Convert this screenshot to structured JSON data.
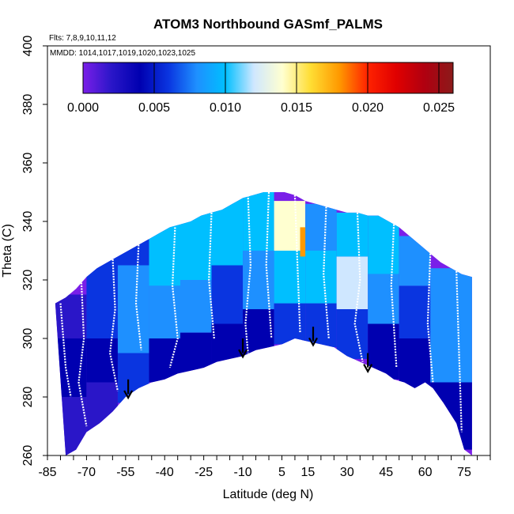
{
  "chart_data": {
    "type": "heatmap",
    "title": "ATOM3 Northbound GASmf_PALMS",
    "subtitle": "Flts: 7,8,9,10,11,12",
    "annotation": "MMDD: 1014,1017,1019,1020,1023,1025",
    "xlabel": "Latitude (deg N)",
    "ylabel": "Theta (C)",
    "xlim": [
      -85,
      85
    ],
    "ylim": [
      260,
      400
    ],
    "x_tick_values": [
      -85,
      -70,
      -55,
      -40,
      -25,
      -10,
      5,
      15,
      30,
      45,
      60,
      75
    ],
    "x_ticks": [
      "-85",
      "-70",
      "-55",
      "-40",
      "-25",
      "-10",
      "5",
      "15",
      "30",
      "45",
      "60",
      "75"
    ],
    "y_tick_values": [
      260,
      280,
      300,
      320,
      340,
      360,
      380,
      400
    ],
    "y_ticks": [
      "260",
      "280",
      "300",
      "320",
      "340",
      "360",
      "380",
      "400"
    ],
    "colorbar": {
      "min": 0,
      "max": 0.026,
      "tick_values": [
        0,
        0.005,
        0.01,
        0.015,
        0.02,
        0.025
      ],
      "ticks": [
        "0.000",
        "0.005",
        "0.010",
        "0.015",
        "0.020",
        "0.025"
      ],
      "colors": [
        "#7a1fe8",
        "#2a16c8",
        "#0000b0",
        "#0a35e0",
        "#1e90ff",
        "#00bfff",
        "#cfe7ff",
        "#ffffd0",
        "#ffdd33",
        "#ff9900",
        "#ff2200",
        "#e00000",
        "#b00010",
        "#8b1a1a"
      ]
    },
    "coverage_top": [
      [
        -82,
        312
      ],
      [
        -78,
        314
      ],
      [
        -74,
        317
      ],
      [
        -70,
        321
      ],
      [
        -66,
        324
      ],
      [
        -62,
        326
      ],
      [
        -58,
        328
      ],
      [
        -54,
        330
      ],
      [
        -50,
        332
      ],
      [
        -46,
        334
      ],
      [
        -42,
        336
      ],
      [
        -38,
        338
      ],
      [
        -34,
        339
      ],
      [
        -30,
        340
      ],
      [
        -26,
        342
      ],
      [
        -22,
        343
      ],
      [
        -18,
        344
      ],
      [
        -14,
        346
      ],
      [
        -10,
        348
      ],
      [
        -6,
        349
      ],
      [
        -2,
        350
      ],
      [
        2,
        350
      ],
      [
        6,
        350
      ],
      [
        10,
        349
      ],
      [
        14,
        347
      ],
      [
        18,
        346
      ],
      [
        22,
        345
      ],
      [
        26,
        344
      ],
      [
        30,
        343
      ],
      [
        34,
        343
      ],
      [
        38,
        342
      ],
      [
        42,
        342
      ],
      [
        46,
        340
      ],
      [
        50,
        338
      ],
      [
        54,
        335
      ],
      [
        58,
        332
      ],
      [
        62,
        329
      ],
      [
        66,
        326
      ],
      [
        70,
        324
      ],
      [
        74,
        322
      ],
      [
        78,
        321
      ]
    ],
    "coverage_bottom": [
      [
        78,
        260
      ],
      [
        75,
        262
      ],
      [
        72,
        271
      ],
      [
        67,
        278
      ],
      [
        63,
        283
      ],
      [
        60,
        285
      ],
      [
        56,
        283
      ],
      [
        52,
        285
      ],
      [
        48,
        286
      ],
      [
        45,
        288
      ],
      [
        40,
        290
      ],
      [
        35,
        292
      ],
      [
        30,
        294
      ],
      [
        25,
        297
      ],
      [
        20,
        298
      ],
      [
        15,
        299
      ],
      [
        10,
        300
      ],
      [
        5,
        298
      ],
      [
        0,
        297
      ],
      [
        -5,
        296
      ],
      [
        -10,
        294
      ],
      [
        -15,
        293
      ],
      [
        -20,
        292
      ],
      [
        -25,
        290
      ],
      [
        -30,
        289
      ],
      [
        -35,
        288
      ],
      [
        -40,
        286
      ],
      [
        -45,
        285
      ],
      [
        -50,
        283
      ],
      [
        -55,
        280
      ],
      [
        -60,
        275
      ],
      [
        -65,
        271
      ],
      [
        -70,
        268
      ],
      [
        -74,
        262
      ],
      [
        -78,
        260
      ]
    ],
    "cells": [
      {
        "x": [
          -82,
          -70
        ],
        "y": [
          260,
          280
        ],
        "value": 0.003
      },
      {
        "x": [
          -82,
          -70
        ],
        "y": [
          280,
          300
        ],
        "value": 0.004
      },
      {
        "x": [
          -82,
          -70
        ],
        "y": [
          300,
          315
        ],
        "value": 0.003
      },
      {
        "x": [
          -70,
          -58
        ],
        "y": [
          268,
          285
        ],
        "value": 0.002
      },
      {
        "x": [
          -70,
          -58
        ],
        "y": [
          285,
          300
        ],
        "value": 0.005
      },
      {
        "x": [
          -70,
          -58
        ],
        "y": [
          300,
          315
        ],
        "value": 0.006
      },
      {
        "x": [
          -70,
          -58
        ],
        "y": [
          315,
          328
        ],
        "value": 0.007
      },
      {
        "x": [
          -58,
          -46
        ],
        "y": [
          278,
          295
        ],
        "value": 0.006
      },
      {
        "x": [
          -58,
          -46
        ],
        "y": [
          295,
          310
        ],
        "value": 0.008
      },
      {
        "x": [
          -58,
          -46
        ],
        "y": [
          310,
          325
        ],
        "value": 0.009
      },
      {
        "x": [
          -58,
          -46
        ],
        "y": [
          325,
          334
        ],
        "value": 0.007
      },
      {
        "x": [
          -46,
          -34
        ],
        "y": [
          285,
          300
        ],
        "value": 0.005
      },
      {
        "x": [
          -46,
          -34
        ],
        "y": [
          300,
          318
        ],
        "value": 0.008
      },
      {
        "x": [
          -46,
          -34
        ],
        "y": [
          318,
          339
        ],
        "value": 0.01
      },
      {
        "x": [
          -34,
          -22
        ],
        "y": [
          288,
          302
        ],
        "value": 0.004
      },
      {
        "x": [
          -34,
          -22
        ],
        "y": [
          302,
          320
        ],
        "value": 0.008
      },
      {
        "x": [
          -34,
          -22
        ],
        "y": [
          320,
          343
        ],
        "value": 0.011
      },
      {
        "x": [
          -22,
          -10
        ],
        "y": [
          291,
          305
        ],
        "value": 0.004
      },
      {
        "x": [
          -22,
          -10
        ],
        "y": [
          305,
          325
        ],
        "value": 0.007
      },
      {
        "x": [
          -22,
          -10
        ],
        "y": [
          325,
          348
        ],
        "value": 0.01
      },
      {
        "x": [
          -10,
          2
        ],
        "y": [
          294,
          310
        ],
        "value": 0.005
      },
      {
        "x": [
          -10,
          2
        ],
        "y": [
          310,
          330
        ],
        "value": 0.008
      },
      {
        "x": [
          -10,
          2
        ],
        "y": [
          330,
          350
        ],
        "value": 0.011
      },
      {
        "x": [
          2,
          14
        ],
        "y": [
          298,
          312
        ],
        "value": 0.006
      },
      {
        "x": [
          2,
          14
        ],
        "y": [
          312,
          330
        ],
        "value": 0.011
      },
      {
        "x": [
          2,
          14
        ],
        "y": [
          330,
          347
        ],
        "value": 0.014
      },
      {
        "x": [
          12,
          16
        ],
        "y": [
          328,
          338
        ],
        "value": 0.017
      },
      {
        "x": [
          14,
          26
        ],
        "y": [
          297,
          312
        ],
        "value": 0.006
      },
      {
        "x": [
          14,
          26
        ],
        "y": [
          312,
          330
        ],
        "value": 0.01
      },
      {
        "x": [
          14,
          26
        ],
        "y": [
          330,
          346
        ],
        "value": 0.009
      },
      {
        "x": [
          26,
          38
        ],
        "y": [
          293,
          310
        ],
        "value": 0.007
      },
      {
        "x": [
          26,
          38
        ],
        "y": [
          310,
          328
        ],
        "value": 0.012
      },
      {
        "x": [
          26,
          38
        ],
        "y": [
          328,
          343
        ],
        "value": 0.01
      },
      {
        "x": [
          38,
          50
        ],
        "y": [
          286,
          305
        ],
        "value": 0.004
      },
      {
        "x": [
          38,
          50
        ],
        "y": [
          305,
          322
        ],
        "value": 0.008
      },
      {
        "x": [
          38,
          50
        ],
        "y": [
          322,
          342
        ],
        "value": 0.011
      },
      {
        "x": [
          50,
          62
        ],
        "y": [
          283,
          300
        ],
        "value": 0.005
      },
      {
        "x": [
          50,
          62
        ],
        "y": [
          300,
          318
        ],
        "value": 0.006
      },
      {
        "x": [
          50,
          62
        ],
        "y": [
          318,
          335
        ],
        "value": 0.009
      },
      {
        "x": [
          62,
          78
        ],
        "y": [
          262,
          285
        ],
        "value": 0.004
      },
      {
        "x": [
          62,
          78
        ],
        "y": [
          285,
          305
        ],
        "value": 0.008
      },
      {
        "x": [
          62,
          78
        ],
        "y": [
          305,
          324
        ],
        "value": 0.009
      }
    ],
    "flight_profiles": [
      {
        "x": [
          -80,
          -78,
          -76
        ],
        "y": [
          312,
          290,
          280
        ]
      },
      {
        "x": [
          -72,
          -71,
          -73,
          -70
        ],
        "y": [
          320,
          300,
          285,
          270
        ]
      },
      {
        "x": [
          -60,
          -59,
          -61,
          -58
        ],
        "y": [
          328,
          310,
          295,
          282
        ]
      },
      {
        "x": [
          -50,
          -51,
          -49
        ],
        "y": [
          332,
          312,
          296
        ]
      },
      {
        "x": [
          -36,
          -37,
          -35,
          -38
        ],
        "y": [
          338,
          318,
          300,
          290
        ]
      },
      {
        "x": [
          -22,
          -23,
          -21
        ],
        "y": [
          343,
          320,
          300
        ]
      },
      {
        "x": [
          -8,
          -7,
          -9,
          -8
        ],
        "y": [
          349,
          325,
          305,
          295
        ]
      },
      {
        "x": [
          0,
          -1,
          1
        ],
        "y": [
          350,
          325,
          300
        ]
      },
      {
        "x": [
          10,
          11,
          12
        ],
        "y": [
          349,
          325,
          302
        ]
      },
      {
        "x": [
          22,
          21,
          23
        ],
        "y": [
          345,
          322,
          300
        ]
      },
      {
        "x": [
          34,
          35,
          33,
          36
        ],
        "y": [
          343,
          320,
          305,
          292
        ]
      },
      {
        "x": [
          48,
          47,
          49
        ],
        "y": [
          339,
          318,
          290
        ]
      },
      {
        "x": [
          62,
          61,
          63
        ],
        "y": [
          329,
          305,
          285
        ]
      },
      {
        "x": [
          72,
          73,
          74
        ],
        "y": [
          323,
          295,
          268
        ]
      }
    ],
    "arrows": [
      {
        "x": -54,
        "y_start": 286,
        "y_end": 280
      },
      {
        "x": -10,
        "y_start": 300,
        "y_end": 294
      },
      {
        "x": 17,
        "y_start": 304,
        "y_end": 298
      },
      {
        "x": 38,
        "y_start": 295,
        "y_end": 289
      }
    ]
  }
}
